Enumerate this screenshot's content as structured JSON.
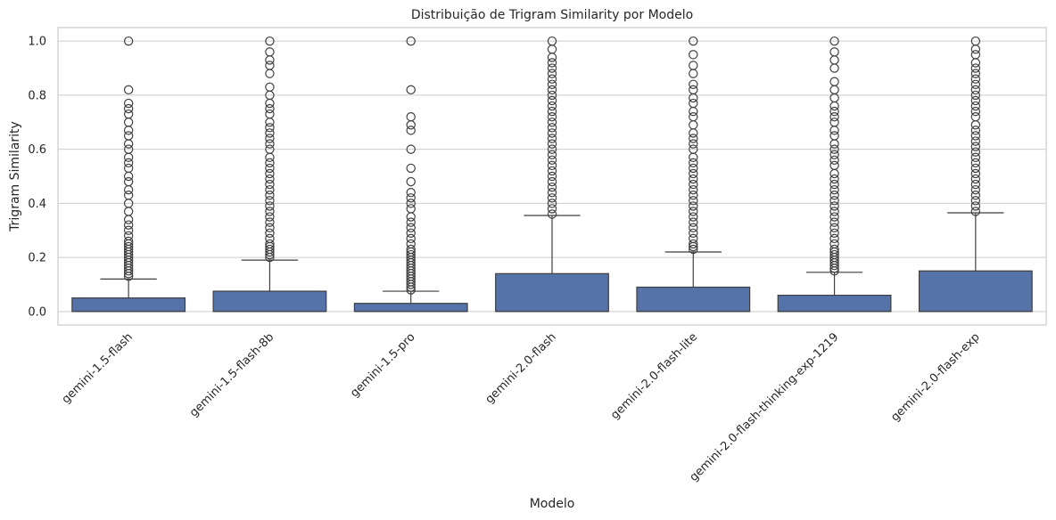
{
  "chart_data": {
    "type": "box",
    "title": "Distribuição de Trigram Similarity por Modelo",
    "xlabel": "Modelo",
    "ylabel": "Trigram Similarity",
    "ylim": [
      -0.05,
      1.05
    ],
    "y_ticks": [
      "0.0",
      "0.2",
      "0.4",
      "0.6",
      "0.8",
      "1.0"
    ],
    "y_tick_values": [
      0.0,
      0.2,
      0.4,
      0.6,
      0.8,
      1.0
    ],
    "grid": "horizontal",
    "box_color": "#5573a8",
    "categories": [
      "gemini-1.5-flash",
      "gemini-1.5-flash-8b",
      "gemini-1.5-pro",
      "gemini-2.0-flash",
      "gemini-2.0-flash-lite",
      "gemini-2.0-flash-thinking-exp-1219",
      "gemini-2.0-flash-exp"
    ],
    "boxes": [
      {
        "min": 0.0,
        "q1": 0.0,
        "median": 0.0,
        "q3": 0.05,
        "max": 0.12,
        "outliers": [
          0.13,
          0.14,
          0.15,
          0.16,
          0.17,
          0.18,
          0.19,
          0.2,
          0.21,
          0.22,
          0.23,
          0.24,
          0.25,
          0.26,
          0.28,
          0.3,
          0.32,
          0.34,
          0.37,
          0.4,
          0.43,
          0.45,
          0.48,
          0.5,
          0.53,
          0.55,
          0.57,
          0.6,
          0.62,
          0.65,
          0.67,
          0.7,
          0.73,
          0.75,
          0.77,
          0.82,
          1.0
        ]
      },
      {
        "min": 0.0,
        "q1": 0.0,
        "median": 0.0,
        "q3": 0.075,
        "max": 0.19,
        "outliers": [
          0.2,
          0.21,
          0.22,
          0.23,
          0.24,
          0.25,
          0.27,
          0.29,
          0.31,
          0.33,
          0.35,
          0.37,
          0.39,
          0.41,
          0.43,
          0.45,
          0.47,
          0.49,
          0.51,
          0.53,
          0.55,
          0.57,
          0.6,
          0.62,
          0.64,
          0.66,
          0.68,
          0.7,
          0.73,
          0.75,
          0.77,
          0.8,
          0.83,
          0.88,
          0.91,
          0.93,
          0.96,
          1.0
        ]
      },
      {
        "min": 0.0,
        "q1": 0.0,
        "median": 0.0,
        "q3": 0.03,
        "max": 0.075,
        "outliers": [
          0.08,
          0.09,
          0.1,
          0.11,
          0.12,
          0.13,
          0.14,
          0.15,
          0.16,
          0.17,
          0.18,
          0.19,
          0.2,
          0.21,
          0.22,
          0.23,
          0.25,
          0.27,
          0.29,
          0.31,
          0.33,
          0.35,
          0.38,
          0.4,
          0.42,
          0.44,
          0.48,
          0.53,
          0.6,
          0.67,
          0.69,
          0.72,
          0.82,
          1.0
        ]
      },
      {
        "min": 0.0,
        "q1": 0.0,
        "median": 0.0,
        "q3": 0.14,
        "max": 0.355,
        "outliers": [
          0.36,
          0.38,
          0.4,
          0.42,
          0.44,
          0.46,
          0.48,
          0.5,
          0.52,
          0.54,
          0.56,
          0.58,
          0.6,
          0.62,
          0.64,
          0.66,
          0.68,
          0.7,
          0.72,
          0.74,
          0.76,
          0.78,
          0.8,
          0.82,
          0.84,
          0.86,
          0.88,
          0.9,
          0.92,
          0.94,
          0.97,
          1.0
        ]
      },
      {
        "min": 0.0,
        "q1": 0.0,
        "median": 0.0,
        "q3": 0.09,
        "max": 0.22,
        "outliers": [
          0.23,
          0.24,
          0.25,
          0.27,
          0.29,
          0.31,
          0.33,
          0.35,
          0.37,
          0.39,
          0.41,
          0.43,
          0.45,
          0.47,
          0.49,
          0.51,
          0.53,
          0.55,
          0.57,
          0.6,
          0.62,
          0.64,
          0.66,
          0.69,
          0.72,
          0.74,
          0.77,
          0.79,
          0.82,
          0.84,
          0.88,
          0.91,
          0.95,
          1.0
        ]
      },
      {
        "min": 0.0,
        "q1": 0.0,
        "median": 0.0,
        "q3": 0.06,
        "max": 0.145,
        "outliers": [
          0.15,
          0.16,
          0.17,
          0.18,
          0.19,
          0.2,
          0.21,
          0.22,
          0.23,
          0.25,
          0.27,
          0.29,
          0.31,
          0.33,
          0.35,
          0.37,
          0.39,
          0.41,
          0.43,
          0.45,
          0.47,
          0.49,
          0.51,
          0.54,
          0.56,
          0.58,
          0.6,
          0.62,
          0.65,
          0.67,
          0.7,
          0.72,
          0.74,
          0.76,
          0.79,
          0.82,
          0.85,
          0.9,
          0.93,
          0.96,
          1.0
        ]
      },
      {
        "min": 0.0,
        "q1": 0.0,
        "median": 0.0,
        "q3": 0.15,
        "max": 0.365,
        "outliers": [
          0.37,
          0.39,
          0.41,
          0.43,
          0.45,
          0.47,
          0.49,
          0.51,
          0.53,
          0.55,
          0.57,
          0.59,
          0.61,
          0.63,
          0.65,
          0.67,
          0.69,
          0.72,
          0.74,
          0.76,
          0.78,
          0.8,
          0.82,
          0.84,
          0.86,
          0.88,
          0.9,
          0.92,
          0.95,
          0.97,
          1.0
        ]
      }
    ]
  }
}
